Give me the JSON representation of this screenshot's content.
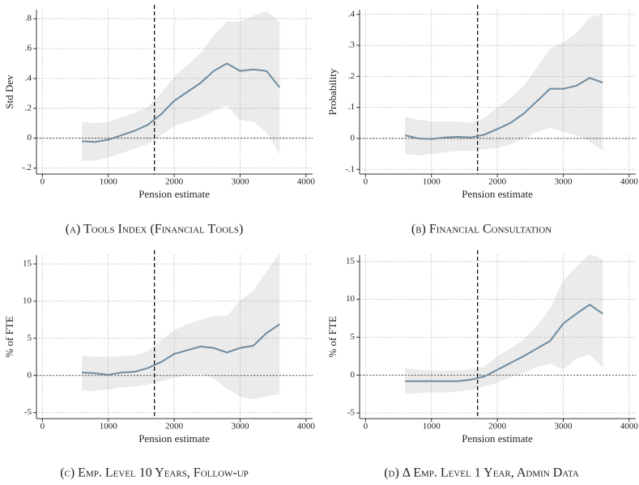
{
  "chart_data": [
    {
      "type": "line",
      "caption": "(a) Tools Index (Financial Tools)",
      "xlabel": "Pension estimate",
      "ylabel": "Std Dev",
      "x": [
        600,
        800,
        1000,
        1200,
        1400,
        1600,
        1800,
        2000,
        2200,
        2400,
        2600,
        2800,
        3000,
        3200,
        3400,
        3600
      ],
      "series": [
        {
          "color": "#6f8ba0",
          "values": [
            -0.02,
            -0.025,
            -0.01,
            0.02,
            0.05,
            0.09,
            0.16,
            0.25,
            0.31,
            0.37,
            0.45,
            0.5,
            0.45,
            0.46,
            0.45,
            0.34
          ]
        }
      ],
      "band": {
        "color": "#ebebeb",
        "lower": [
          -0.15,
          -0.15,
          -0.13,
          -0.1,
          -0.07,
          -0.04,
          0.02,
          0.08,
          0.11,
          0.14,
          0.18,
          0.22,
          0.12,
          0.11,
          0.04,
          -0.11
        ],
        "upper": [
          0.11,
          0.1,
          0.11,
          0.14,
          0.17,
          0.21,
          0.3,
          0.41,
          0.49,
          0.57,
          0.69,
          0.78,
          0.78,
          0.82,
          0.85,
          0.78
        ]
      },
      "vline": 1700,
      "hline": 0,
      "grid": true,
      "xlim": [
        -90,
        4100
      ],
      "xticks": [
        0,
        1000,
        2000,
        3000,
        4000
      ],
      "ylim": [
        -0.24,
        0.86
      ],
      "yticks": [
        {
          "value": -0.2,
          "label": "-.2"
        },
        0,
        {
          "value": 0.2,
          "label": ".2"
        },
        {
          "value": 0.4,
          "label": ".4"
        },
        {
          "value": 0.6,
          "label": ".6"
        },
        {
          "value": 0.8,
          "label": ".8"
        }
      ]
    },
    {
      "type": "line",
      "caption": "(b) Financial Consultation",
      "xlabel": "Pension estimate",
      "ylabel": "Probability",
      "x": [
        600,
        800,
        1000,
        1200,
        1400,
        1600,
        1800,
        2000,
        2200,
        2400,
        2600,
        2800,
        3000,
        3200,
        3400,
        3600
      ],
      "series": [
        {
          "color": "#6f8ba0",
          "values": [
            0.01,
            0,
            -0.002,
            0.003,
            0.005,
            0.003,
            0.012,
            0.03,
            0.05,
            0.08,
            0.12,
            0.16,
            0.16,
            0.17,
            0.195,
            0.18
          ]
        }
      ],
      "band": {
        "color": "#ebebeb",
        "lower": [
          -0.05,
          -0.055,
          -0.05,
          -0.045,
          -0.04,
          -0.04,
          -0.035,
          -0.03,
          -0.02,
          0,
          0.02,
          0.035,
          0.02,
          0.01,
          -0.01,
          -0.04
        ],
        "upper": [
          0.07,
          0.06,
          0.055,
          0.055,
          0.055,
          0.05,
          0.065,
          0.1,
          0.13,
          0.17,
          0.23,
          0.29,
          0.31,
          0.34,
          0.39,
          0.4
        ]
      },
      "vline": 1700,
      "hline": 0,
      "grid": true,
      "xlim": [
        -90,
        4100
      ],
      "xticks": [
        0,
        1000,
        2000,
        3000,
        4000
      ],
      "ylim": [
        -0.115,
        0.415
      ],
      "yticks": [
        {
          "value": -0.1,
          "label": "-.1"
        },
        0,
        {
          "value": 0.1,
          "label": ".1"
        },
        {
          "value": 0.2,
          "label": ".2"
        },
        {
          "value": 0.3,
          "label": ".3"
        },
        {
          "value": 0.4,
          "label": ".4"
        }
      ]
    },
    {
      "type": "line",
      "caption": "(c) Emp. Level 10 Years, Follow-up",
      "xlabel": "Pension estimate",
      "ylabel": "% of FTE",
      "x": [
        600,
        800,
        1000,
        1200,
        1400,
        1600,
        1800,
        2000,
        2200,
        2400,
        2600,
        2800,
        3000,
        3200,
        3400,
        3600
      ],
      "series": [
        {
          "color": "#6f8ba0",
          "values": [
            0.4,
            0.3,
            0.1,
            0.4,
            0.5,
            1.0,
            1.8,
            2.9,
            3.4,
            3.9,
            3.7,
            3.1,
            3.7,
            4.0,
            5.7,
            6.9
          ]
        }
      ],
      "band": {
        "color": "#ebebeb",
        "lower": [
          -2,
          -2.1,
          -1.9,
          -1.6,
          -1.5,
          -1.2,
          -0.8,
          -0.3,
          0,
          0.2,
          -0.4,
          -1.8,
          -2.8,
          -3.2,
          -2.8,
          -2.5
        ],
        "upper": [
          2.7,
          2.5,
          2.5,
          2.6,
          2.7,
          3.3,
          4.7,
          6.1,
          6.9,
          7.5,
          8.0,
          8.0,
          10.1,
          11.4,
          14.0,
          16.5
        ]
      },
      "vline": 1700,
      "hline": 0,
      "grid": true,
      "xlim": [
        -90,
        4100
      ],
      "xticks": [
        0,
        1000,
        2000,
        3000,
        4000
      ],
      "ylim": [
        -5.8,
        16.2
      ],
      "yticks": [
        -5,
        0,
        5,
        10,
        15
      ]
    },
    {
      "type": "line",
      "caption": "(d) Δ Emp. Level 1 Year, Admin Data",
      "xlabel": "Pension estimate",
      "ylabel": "% of FTE",
      "x": [
        600,
        800,
        1000,
        1200,
        1400,
        1600,
        1800,
        2000,
        2200,
        2400,
        2600,
        2800,
        3000,
        3200,
        3400,
        3600
      ],
      "series": [
        {
          "color": "#6f8ba0",
          "values": [
            -0.8,
            -0.8,
            -0.8,
            -0.8,
            -0.8,
            -0.6,
            -0.2,
            0.7,
            1.6,
            2.5,
            3.5,
            4.5,
            6.8,
            8.1,
            9.3,
            8.1
          ]
        }
      ],
      "band": {
        "color": "#ebebeb",
        "lower": [
          -2.5,
          -2.4,
          -2.3,
          -2.3,
          -2.2,
          -2.0,
          -1.5,
          -1.0,
          -0.3,
          0.3,
          1.0,
          1.5,
          0.7,
          2.2,
          2.7,
          1.0
        ],
        "upper": [
          0.9,
          0.7,
          0.6,
          0.6,
          0.6,
          0.8,
          1.1,
          2.5,
          3.5,
          4.7,
          6.5,
          8.8,
          12.5,
          14.3,
          16.0,
          15.3
        ]
      },
      "vline": 1700,
      "hline": 0,
      "grid": true,
      "xlim": [
        -90,
        4100
      ],
      "xticks": [
        0,
        1000,
        2000,
        3000,
        4000
      ],
      "ylim": [
        -5.75,
        15.85
      ],
      "yticks": [
        -5,
        0,
        5,
        10,
        15
      ]
    }
  ]
}
